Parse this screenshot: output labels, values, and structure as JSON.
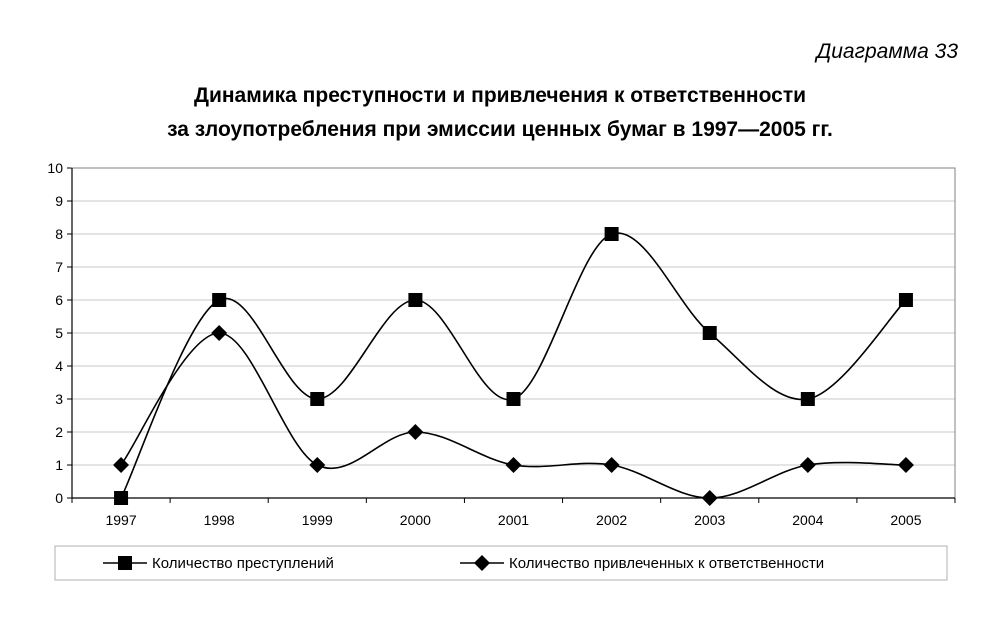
{
  "header": {
    "diagram_number": "Диаграмма 33"
  },
  "chart_data": {
    "type": "line",
    "title_line1": "Динамика преступности и привлечения к ответственности",
    "title_line2": "за злоупотребления при эмиссии ценных бумаг в 1997—2005 гг.",
    "categories": [
      "1997",
      "1998",
      "1999",
      "2000",
      "2001",
      "2002",
      "2003",
      "2004",
      "2005"
    ],
    "series": [
      {
        "name": "Количество преступлений",
        "marker": "square",
        "values": [
          0,
          6,
          3,
          6,
          3,
          8,
          5,
          3,
          6
        ]
      },
      {
        "name": "Количество привлеченных к ответственности",
        "marker": "diamond",
        "values": [
          1,
          5,
          1,
          2,
          1,
          1,
          0,
          1,
          1
        ]
      }
    ],
    "ylim": [
      0,
      10
    ],
    "yticks": [
      0,
      1,
      2,
      3,
      4,
      5,
      6,
      7,
      8,
      9,
      10
    ],
    "grid": true,
    "smooth": true,
    "legend_position": "bottom",
    "colors": {
      "line": "#000000",
      "grid": "#c8c8c8",
      "frame": "#000000"
    }
  }
}
